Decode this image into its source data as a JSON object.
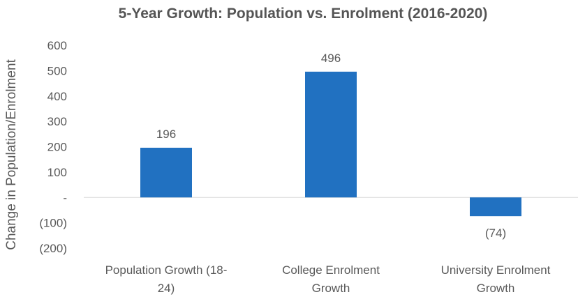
{
  "chart_data": {
    "type": "bar",
    "title": "5-Year Growth: Population vs. Enrolment (2016-2020)",
    "xlabel": "",
    "ylabel": "Change in Population/Enrolment",
    "categories": [
      [
        "Population Growth (18-",
        "24)"
      ],
      [
        "College Enrolment",
        "Growth"
      ],
      [
        "University Enrolment",
        "Growth"
      ]
    ],
    "values": [
      196,
      496,
      -74
    ],
    "data_labels": [
      "196",
      "496",
      "(74)"
    ],
    "ylim": [
      -200,
      600
    ],
    "yticks": [
      600,
      500,
      400,
      300,
      200,
      100,
      0,
      -100,
      -200
    ],
    "ytick_labels": [
      "600",
      "500",
      "400",
      "300",
      "200",
      "100",
      "-",
      "(100)",
      "(200)"
    ],
    "grid": false,
    "legend": "none",
    "bar_color": "#2171c1",
    "axis_color": "#d9d9d9",
    "text_color": "#595959"
  }
}
